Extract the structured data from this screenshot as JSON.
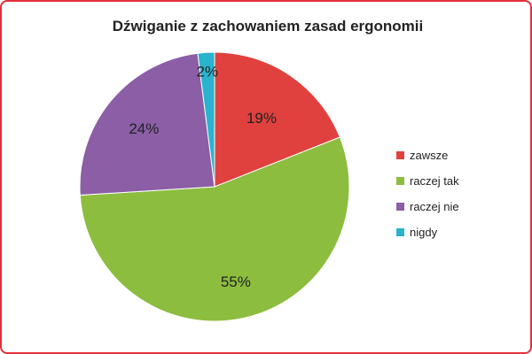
{
  "chart_data": {
    "type": "pie",
    "title": "Dźwiganie z zachowaniem zasad ergonomii",
    "categories": [
      "zawsze",
      "raczej tak",
      "raczej nie",
      "nigdy"
    ],
    "values": [
      19,
      55,
      24,
      2
    ],
    "labels": [
      "19%",
      "55%",
      "24%",
      "2%"
    ],
    "colors": [
      "#e0413f",
      "#8cbd3f",
      "#8b5ea6",
      "#2ab3cc"
    ],
    "legend_position": "right",
    "frame_color": "#e2303a"
  }
}
